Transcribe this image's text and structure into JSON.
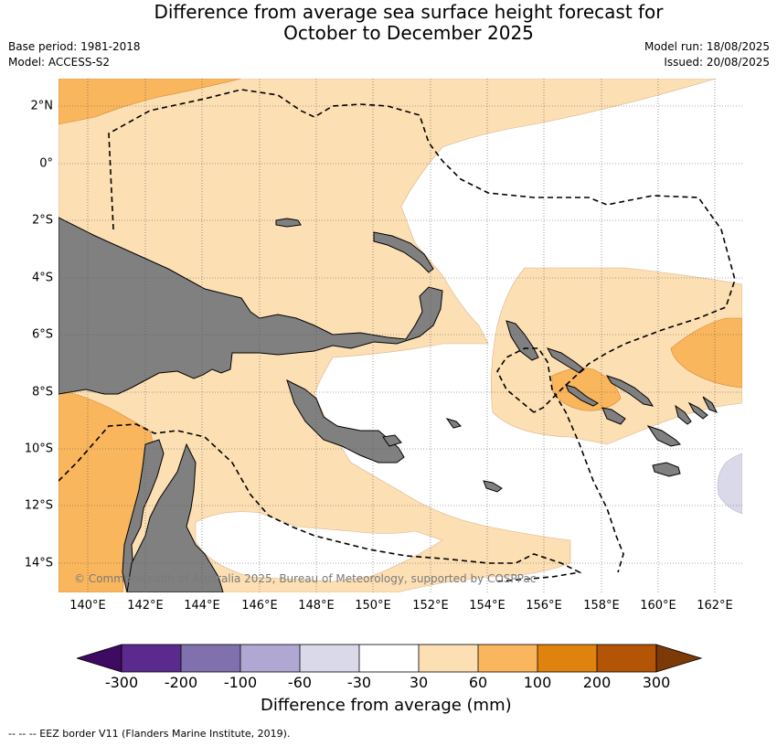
{
  "title_line1": "Difference from average sea surface height forecast for",
  "title_line2": "October to December 2025",
  "base_period": "Base period: 1981-2018",
  "model": "Model: ACCESS-S2",
  "model_run": "Model run: 18/08/2025",
  "issued": "Issued: 20/08/2025",
  "lat_labels": [
    "2°N",
    "0°",
    "2°S",
    "4°S",
    "6°S",
    "8°S",
    "10°S",
    "12°S",
    "14°S"
  ],
  "lon_labels": [
    "140°E",
    "142°E",
    "144°E",
    "146°E",
    "148°E",
    "150°E",
    "152°E",
    "154°E",
    "156°E",
    "158°E",
    "160°E",
    "162°E"
  ],
  "copyright": "© Commonwealth of Australia 2025, Bureau of Meteorology, supported by COSPPac",
  "colorbar": {
    "title": "Difference from average (mm)",
    "tick_labels": [
      "-300",
      "-200",
      "-100",
      "-60",
      "-30",
      "30",
      "60",
      "100",
      "200",
      "300"
    ],
    "colors": [
      "#3f0a62",
      "#5b2a8d",
      "#8170ae",
      "#b0a8d2",
      "#d9d9ea",
      "#ffffff",
      "#fddfb4",
      "#f9b65c",
      "#e0820e",
      "#b45506",
      "#7c3a06"
    ]
  },
  "map_colors": {
    "land": "#808080",
    "positive_30_60": "#fddfb4",
    "positive_60_100": "#f9b65c",
    "negative_30_60": "#d9d9ea"
  },
  "footer": "--  --  -- EEZ border V11 (Flanders Marine Institute, 2019)."
}
